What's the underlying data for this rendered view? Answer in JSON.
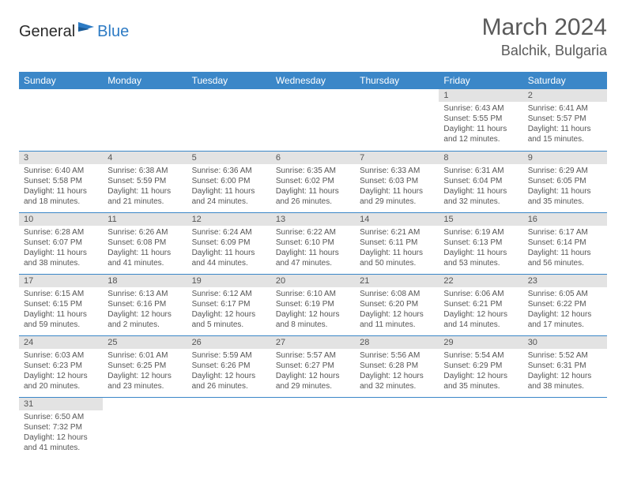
{
  "brand": {
    "part1": "General",
    "part2": "Blue"
  },
  "title": "March 2024",
  "location": "Balchik, Bulgaria",
  "colors": {
    "header_bg": "#3b87c8",
    "header_fg": "#ffffff",
    "daynum_bg": "#e3e3e3",
    "rule": "#3b87c8",
    "logo_blue": "#2d7bc4",
    "text": "#555555"
  },
  "weekdays": [
    "Sunday",
    "Monday",
    "Tuesday",
    "Wednesday",
    "Thursday",
    "Friday",
    "Saturday"
  ],
  "weeks": [
    [
      null,
      null,
      null,
      null,
      null,
      {
        "n": "1",
        "sunrise": "Sunrise: 6:43 AM",
        "sunset": "Sunset: 5:55 PM",
        "day1": "Daylight: 11 hours",
        "day2": "and 12 minutes."
      },
      {
        "n": "2",
        "sunrise": "Sunrise: 6:41 AM",
        "sunset": "Sunset: 5:57 PM",
        "day1": "Daylight: 11 hours",
        "day2": "and 15 minutes."
      }
    ],
    [
      {
        "n": "3",
        "sunrise": "Sunrise: 6:40 AM",
        "sunset": "Sunset: 5:58 PM",
        "day1": "Daylight: 11 hours",
        "day2": "and 18 minutes."
      },
      {
        "n": "4",
        "sunrise": "Sunrise: 6:38 AM",
        "sunset": "Sunset: 5:59 PM",
        "day1": "Daylight: 11 hours",
        "day2": "and 21 minutes."
      },
      {
        "n": "5",
        "sunrise": "Sunrise: 6:36 AM",
        "sunset": "Sunset: 6:00 PM",
        "day1": "Daylight: 11 hours",
        "day2": "and 24 minutes."
      },
      {
        "n": "6",
        "sunrise": "Sunrise: 6:35 AM",
        "sunset": "Sunset: 6:02 PM",
        "day1": "Daylight: 11 hours",
        "day2": "and 26 minutes."
      },
      {
        "n": "7",
        "sunrise": "Sunrise: 6:33 AM",
        "sunset": "Sunset: 6:03 PM",
        "day1": "Daylight: 11 hours",
        "day2": "and 29 minutes."
      },
      {
        "n": "8",
        "sunrise": "Sunrise: 6:31 AM",
        "sunset": "Sunset: 6:04 PM",
        "day1": "Daylight: 11 hours",
        "day2": "and 32 minutes."
      },
      {
        "n": "9",
        "sunrise": "Sunrise: 6:29 AM",
        "sunset": "Sunset: 6:05 PM",
        "day1": "Daylight: 11 hours",
        "day2": "and 35 minutes."
      }
    ],
    [
      {
        "n": "10",
        "sunrise": "Sunrise: 6:28 AM",
        "sunset": "Sunset: 6:07 PM",
        "day1": "Daylight: 11 hours",
        "day2": "and 38 minutes."
      },
      {
        "n": "11",
        "sunrise": "Sunrise: 6:26 AM",
        "sunset": "Sunset: 6:08 PM",
        "day1": "Daylight: 11 hours",
        "day2": "and 41 minutes."
      },
      {
        "n": "12",
        "sunrise": "Sunrise: 6:24 AM",
        "sunset": "Sunset: 6:09 PM",
        "day1": "Daylight: 11 hours",
        "day2": "and 44 minutes."
      },
      {
        "n": "13",
        "sunrise": "Sunrise: 6:22 AM",
        "sunset": "Sunset: 6:10 PM",
        "day1": "Daylight: 11 hours",
        "day2": "and 47 minutes."
      },
      {
        "n": "14",
        "sunrise": "Sunrise: 6:21 AM",
        "sunset": "Sunset: 6:11 PM",
        "day1": "Daylight: 11 hours",
        "day2": "and 50 minutes."
      },
      {
        "n": "15",
        "sunrise": "Sunrise: 6:19 AM",
        "sunset": "Sunset: 6:13 PM",
        "day1": "Daylight: 11 hours",
        "day2": "and 53 minutes."
      },
      {
        "n": "16",
        "sunrise": "Sunrise: 6:17 AM",
        "sunset": "Sunset: 6:14 PM",
        "day1": "Daylight: 11 hours",
        "day2": "and 56 minutes."
      }
    ],
    [
      {
        "n": "17",
        "sunrise": "Sunrise: 6:15 AM",
        "sunset": "Sunset: 6:15 PM",
        "day1": "Daylight: 11 hours",
        "day2": "and 59 minutes."
      },
      {
        "n": "18",
        "sunrise": "Sunrise: 6:13 AM",
        "sunset": "Sunset: 6:16 PM",
        "day1": "Daylight: 12 hours",
        "day2": "and 2 minutes."
      },
      {
        "n": "19",
        "sunrise": "Sunrise: 6:12 AM",
        "sunset": "Sunset: 6:17 PM",
        "day1": "Daylight: 12 hours",
        "day2": "and 5 minutes."
      },
      {
        "n": "20",
        "sunrise": "Sunrise: 6:10 AM",
        "sunset": "Sunset: 6:19 PM",
        "day1": "Daylight: 12 hours",
        "day2": "and 8 minutes."
      },
      {
        "n": "21",
        "sunrise": "Sunrise: 6:08 AM",
        "sunset": "Sunset: 6:20 PM",
        "day1": "Daylight: 12 hours",
        "day2": "and 11 minutes."
      },
      {
        "n": "22",
        "sunrise": "Sunrise: 6:06 AM",
        "sunset": "Sunset: 6:21 PM",
        "day1": "Daylight: 12 hours",
        "day2": "and 14 minutes."
      },
      {
        "n": "23",
        "sunrise": "Sunrise: 6:05 AM",
        "sunset": "Sunset: 6:22 PM",
        "day1": "Daylight: 12 hours",
        "day2": "and 17 minutes."
      }
    ],
    [
      {
        "n": "24",
        "sunrise": "Sunrise: 6:03 AM",
        "sunset": "Sunset: 6:23 PM",
        "day1": "Daylight: 12 hours",
        "day2": "and 20 minutes."
      },
      {
        "n": "25",
        "sunrise": "Sunrise: 6:01 AM",
        "sunset": "Sunset: 6:25 PM",
        "day1": "Daylight: 12 hours",
        "day2": "and 23 minutes."
      },
      {
        "n": "26",
        "sunrise": "Sunrise: 5:59 AM",
        "sunset": "Sunset: 6:26 PM",
        "day1": "Daylight: 12 hours",
        "day2": "and 26 minutes."
      },
      {
        "n": "27",
        "sunrise": "Sunrise: 5:57 AM",
        "sunset": "Sunset: 6:27 PM",
        "day1": "Daylight: 12 hours",
        "day2": "and 29 minutes."
      },
      {
        "n": "28",
        "sunrise": "Sunrise: 5:56 AM",
        "sunset": "Sunset: 6:28 PM",
        "day1": "Daylight: 12 hours",
        "day2": "and 32 minutes."
      },
      {
        "n": "29",
        "sunrise": "Sunrise: 5:54 AM",
        "sunset": "Sunset: 6:29 PM",
        "day1": "Daylight: 12 hours",
        "day2": "and 35 minutes."
      },
      {
        "n": "30",
        "sunrise": "Sunrise: 5:52 AM",
        "sunset": "Sunset: 6:31 PM",
        "day1": "Daylight: 12 hours",
        "day2": "and 38 minutes."
      }
    ],
    [
      {
        "n": "31",
        "sunrise": "Sunrise: 6:50 AM",
        "sunset": "Sunset: 7:32 PM",
        "day1": "Daylight: 12 hours",
        "day2": "and 41 minutes."
      },
      null,
      null,
      null,
      null,
      null,
      null
    ]
  ]
}
